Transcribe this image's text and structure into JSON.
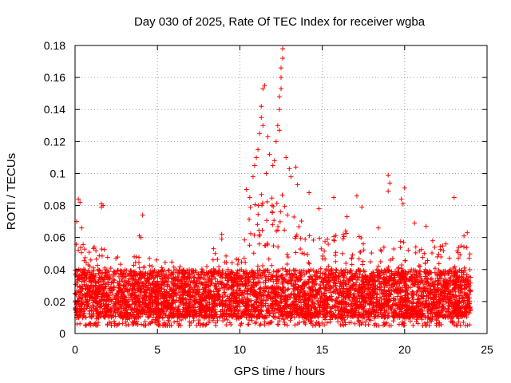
{
  "chart_data": {
    "type": "scatter",
    "title": "Day 030 of 2025, Rate Of TEC Index for receiver wgba",
    "xlabel": "GPS time / hours",
    "ylabel": "ROTI / TECUs",
    "xlim": [
      0,
      25
    ],
    "ylim": [
      0,
      0.18
    ],
    "x_ticks": [
      0,
      5,
      10,
      15,
      20,
      25
    ],
    "x_tick_labels": [
      "0",
      "5",
      "10",
      "15",
      "20",
      "25"
    ],
    "y_ticks": [
      0,
      0.02,
      0.04,
      0.06,
      0.08,
      0.1,
      0.12,
      0.14,
      0.16,
      0.18
    ],
    "y_tick_labels": [
      "0",
      "0.02",
      "0.04",
      "0.06",
      "0.08",
      "0.1",
      "0.12",
      "0.14",
      "0.16",
      "0.18"
    ],
    "grid": true,
    "marker": "+",
    "marker_color": "#ff0000",
    "point_density_note_values": {
      "baseline_low": 0.005,
      "baseline_high": 0.045
    },
    "outliers": [
      {
        "x": 0.2,
        "y": 0.084
      },
      {
        "x": 0.3,
        "y": 0.082
      },
      {
        "x": 0.1,
        "y": 0.07
      },
      {
        "x": 0.4,
        "y": 0.066
      },
      {
        "x": 1.6,
        "y": 0.081
      },
      {
        "x": 1.6,
        "y": 0.079
      },
      {
        "x": 1.7,
        "y": 0.08
      },
      {
        "x": 4.1,
        "y": 0.074
      },
      {
        "x": 3.9,
        "y": 0.061
      },
      {
        "x": 4.0,
        "y": 0.06
      },
      {
        "x": 8.4,
        "y": 0.053
      },
      {
        "x": 8.5,
        "y": 0.05
      },
      {
        "x": 8.9,
        "y": 0.062
      },
      {
        "x": 8.9,
        "y": 0.059
      },
      {
        "x": 10.4,
        "y": 0.09
      },
      {
        "x": 10.6,
        "y": 0.085
      },
      {
        "x": 10.8,
        "y": 0.098
      },
      {
        "x": 10.9,
        "y": 0.105
      },
      {
        "x": 11.0,
        "y": 0.11
      },
      {
        "x": 11.1,
        "y": 0.115
      },
      {
        "x": 11.2,
        "y": 0.125
      },
      {
        "x": 11.3,
        "y": 0.135
      },
      {
        "x": 11.3,
        "y": 0.142
      },
      {
        "x": 11.4,
        "y": 0.153
      },
      {
        "x": 11.5,
        "y": 0.155
      },
      {
        "x": 11.4,
        "y": 0.13
      },
      {
        "x": 11.6,
        "y": 0.1
      },
      {
        "x": 11.8,
        "y": 0.112
      },
      {
        "x": 12.0,
        "y": 0.105
      },
      {
        "x": 12.1,
        "y": 0.108
      },
      {
        "x": 12.2,
        "y": 0.12
      },
      {
        "x": 12.3,
        "y": 0.13
      },
      {
        "x": 12.4,
        "y": 0.14
      },
      {
        "x": 12.4,
        "y": 0.148
      },
      {
        "x": 12.5,
        "y": 0.16
      },
      {
        "x": 12.5,
        "y": 0.166
      },
      {
        "x": 12.6,
        "y": 0.172
      },
      {
        "x": 12.6,
        "y": 0.178
      },
      {
        "x": 12.5,
        "y": 0.153
      },
      {
        "x": 12.4,
        "y": 0.127
      },
      {
        "x": 11.7,
        "y": 0.123
      },
      {
        "x": 12.8,
        "y": 0.11
      },
      {
        "x": 13.0,
        "y": 0.103
      },
      {
        "x": 13.1,
        "y": 0.098
      },
      {
        "x": 13.4,
        "y": 0.104
      },
      {
        "x": 13.5,
        "y": 0.093
      },
      {
        "x": 14.2,
        "y": 0.088
      },
      {
        "x": 14.8,
        "y": 0.078
      },
      {
        "x": 15.7,
        "y": 0.085
      },
      {
        "x": 16.5,
        "y": 0.073
      },
      {
        "x": 17.1,
        "y": 0.086
      },
      {
        "x": 17.4,
        "y": 0.079
      },
      {
        "x": 18.4,
        "y": 0.066
      },
      {
        "x": 19.0,
        "y": 0.099
      },
      {
        "x": 19.1,
        "y": 0.094
      },
      {
        "x": 19.0,
        "y": 0.089
      },
      {
        "x": 19.8,
        "y": 0.084
      },
      {
        "x": 19.9,
        "y": 0.081
      },
      {
        "x": 20.0,
        "y": 0.091
      },
      {
        "x": 20.6,
        "y": 0.069
      },
      {
        "x": 21.3,
        "y": 0.067
      },
      {
        "x": 21.7,
        "y": 0.058
      },
      {
        "x": 23.0,
        "y": 0.085
      },
      {
        "x": 23.6,
        "y": 0.061
      },
      {
        "x": 23.8,
        "y": 0.063
      },
      {
        "x": 22.5,
        "y": 0.056
      }
    ],
    "envelope": [
      {
        "x": 0.0,
        "upper": 0.06
      },
      {
        "x": 1.0,
        "upper": 0.055
      },
      {
        "x": 2.0,
        "upper": 0.052
      },
      {
        "x": 3.0,
        "upper": 0.046
      },
      {
        "x": 4.0,
        "upper": 0.05
      },
      {
        "x": 5.0,
        "upper": 0.048
      },
      {
        "x": 6.0,
        "upper": 0.045
      },
      {
        "x": 7.0,
        "upper": 0.04
      },
      {
        "x": 8.0,
        "upper": 0.044
      },
      {
        "x": 9.0,
        "upper": 0.05
      },
      {
        "x": 10.0,
        "upper": 0.06
      },
      {
        "x": 10.5,
        "upper": 0.075
      },
      {
        "x": 11.0,
        "upper": 0.09
      },
      {
        "x": 11.5,
        "upper": 0.1
      },
      {
        "x": 12.0,
        "upper": 0.1
      },
      {
        "x": 12.5,
        "upper": 0.1
      },
      {
        "x": 13.0,
        "upper": 0.08
      },
      {
        "x": 13.5,
        "upper": 0.075
      },
      {
        "x": 14.0,
        "upper": 0.07
      },
      {
        "x": 15.0,
        "upper": 0.06
      },
      {
        "x": 16.0,
        "upper": 0.065
      },
      {
        "x": 17.0,
        "upper": 0.065
      },
      {
        "x": 18.0,
        "upper": 0.055
      },
      {
        "x": 19.0,
        "upper": 0.058
      },
      {
        "x": 20.0,
        "upper": 0.058
      },
      {
        "x": 21.0,
        "upper": 0.055
      },
      {
        "x": 22.0,
        "upper": 0.055
      },
      {
        "x": 23.0,
        "upper": 0.055
      },
      {
        "x": 24.0,
        "upper": 0.055
      }
    ],
    "data_x_range": [
      0,
      24
    ]
  }
}
